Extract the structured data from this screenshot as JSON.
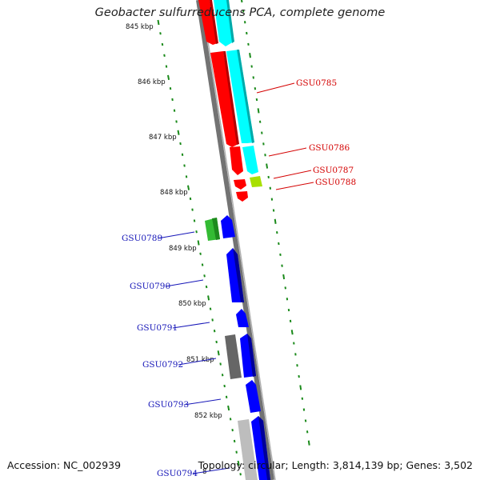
{
  "header": {
    "title": "Geobacter sulfurreducens PCA, complete genome"
  },
  "footer": {
    "accession": "Accession: NC_002939",
    "summary": "Topology: circular; Length: 3,814,139 bp; Genes: 3,502"
  },
  "scale": {
    "tick_labels": [
      "845 kbp",
      "846 kbp",
      "847 kbp",
      "848 kbp",
      "849 kbp",
      "850 kbp",
      "851 kbp",
      "852 kbp",
      "8"
    ]
  },
  "genes": [
    {
      "label": "GSU0785",
      "color": "#d40000"
    },
    {
      "label": "GSU0786",
      "color": "#d40000"
    },
    {
      "label": "GSU0787",
      "color": "#d40000"
    },
    {
      "label": "GSU0788",
      "color": "#d40000"
    },
    {
      "label": "GSU0789",
      "color": "#1616b8"
    },
    {
      "label": "GSU0790",
      "color": "#1616b8"
    },
    {
      "label": "GSU0791",
      "color": "#1616b8"
    },
    {
      "label": "GSU0792",
      "color": "#1616b8"
    },
    {
      "label": "GSU0793",
      "color": "#1616b8"
    },
    {
      "label": "GSU0794",
      "color": "#1616b8"
    }
  ],
  "colors": {
    "backbone": "#8a8a8a",
    "ticks": "#1a8a1a",
    "forward_cds": "#ff0000",
    "forward_cds_secondary": "#00e5e5",
    "reverse_cds": "#0000ff",
    "rna_feature": "#33bb33",
    "lime_feature": "#a8e000",
    "grey_feature": "#666666",
    "light_grey_feature": "#bdbdbd"
  }
}
